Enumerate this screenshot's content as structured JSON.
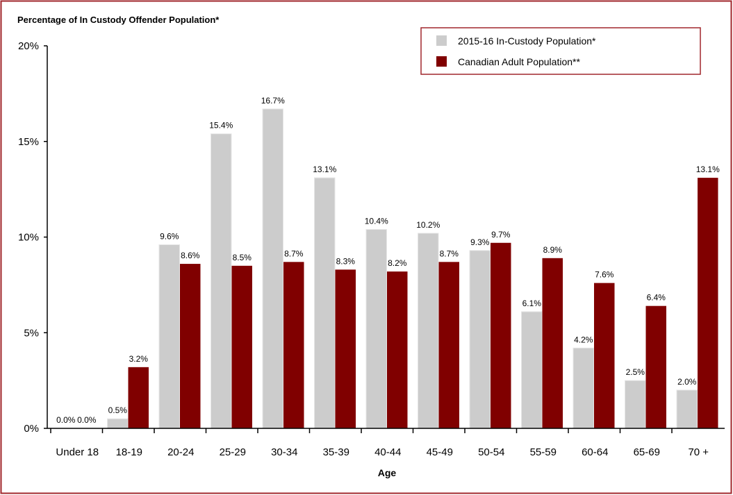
{
  "chart_data": {
    "type": "bar",
    "title": "Percentage of In Custody Offender Population*",
    "xlabel": "Age",
    "ylabel": "",
    "ylim": [
      0,
      20
    ],
    "yticks": [
      "0%",
      "5%",
      "10%",
      "15%",
      "20%"
    ],
    "grid": false,
    "legend_position": "top-right",
    "categories": [
      "Under 18",
      "18-19",
      "20-24",
      "25-29",
      "30-34",
      "35-39",
      "40-44",
      "45-49",
      "50-54",
      "55-59",
      "60-64",
      "65-69",
      "70 +"
    ],
    "series": [
      {
        "name": "2015-16 In-Custody Population*",
        "color": "#cccccc",
        "values": [
          0.0,
          0.5,
          9.6,
          15.4,
          16.7,
          13.1,
          10.4,
          10.2,
          9.3,
          6.1,
          4.2,
          2.5,
          2.0
        ]
      },
      {
        "name": "Canadian Adult Population**",
        "color": "#800000",
        "values": [
          0.0,
          3.2,
          8.6,
          8.5,
          8.7,
          8.3,
          8.2,
          8.7,
          9.7,
          8.9,
          7.6,
          6.4,
          13.1
        ]
      }
    ],
    "border_color": "#a0262b"
  }
}
